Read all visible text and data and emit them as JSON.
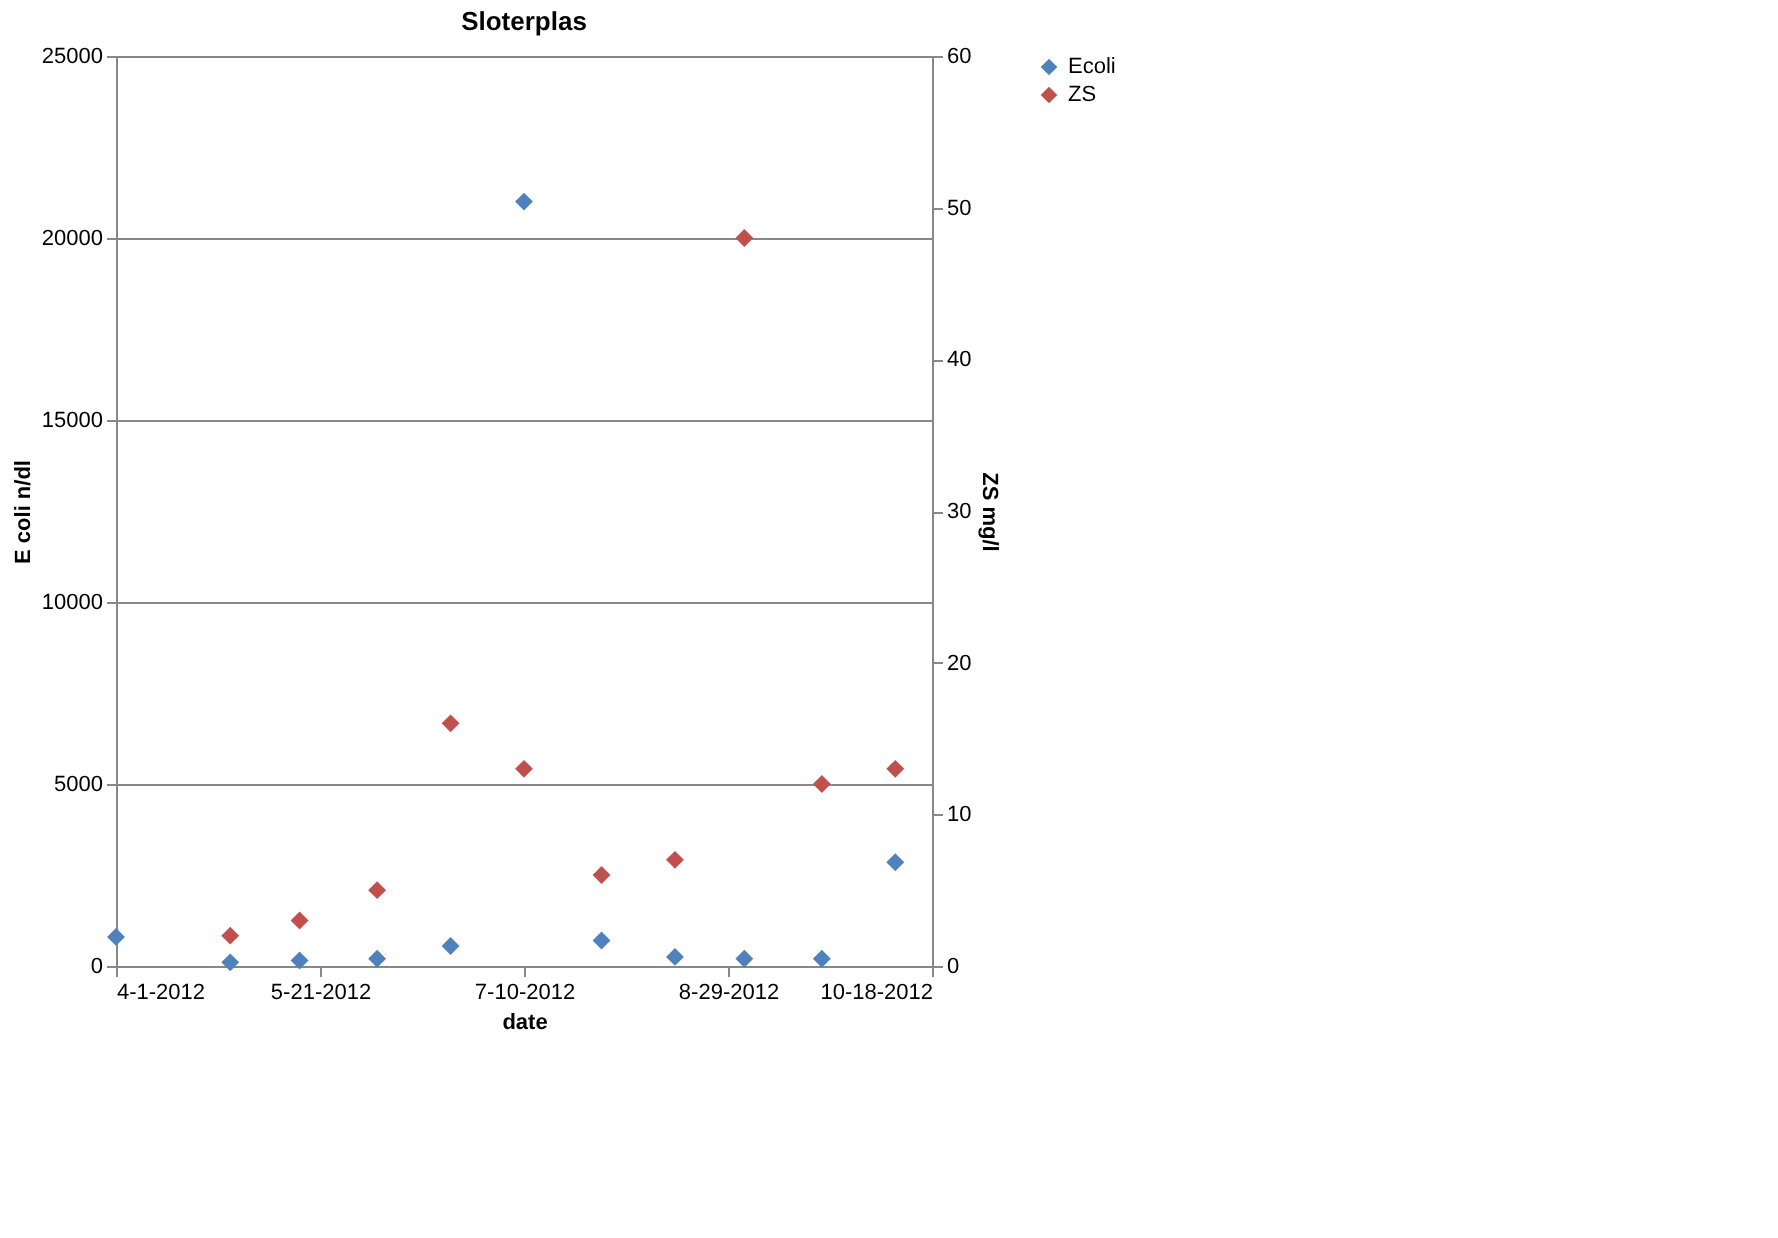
{
  "chart_data": {
    "type": "scatter",
    "title": "Sloterplas",
    "xlabel": "date",
    "ylabel": "E coli n/dl",
    "y2label": "ZS mg/l",
    "series": [
      {
        "name": "Ecoli",
        "color": "#4f81bd",
        "x": [
          "2012-04-01",
          "2012-04-29",
          "2012-05-16",
          "2012-06-04",
          "2012-06-22",
          "2012-07-10",
          "2012-07-29",
          "2012-08-16",
          "2012-09-02",
          "2012-09-21",
          "2012-10-09"
        ],
        "values": [
          800,
          100,
          150,
          200,
          550,
          21000,
          700,
          250,
          200,
          200,
          2850
        ]
      },
      {
        "name": "ZS",
        "color": "#c0504d",
        "axis": "y2",
        "x": [
          "2012-04-29",
          "2012-05-16",
          "2012-06-04",
          "2012-06-22",
          "2012-07-10",
          "2012-07-29",
          "2012-08-16",
          "2012-09-02",
          "2012-09-21",
          "2012-10-09"
        ],
        "values": [
          2,
          3,
          5,
          16,
          13,
          6,
          7,
          48,
          12,
          13
        ]
      }
    ],
    "xlim": [
      "2012-04-01",
      "2012-10-18"
    ],
    "xticks": [
      {
        "value": "2012-04-01",
        "label": "4-1-2012"
      },
      {
        "value": "2012-05-21",
        "label": "5-21-2012"
      },
      {
        "value": "2012-07-10",
        "label": "7-10-2012"
      },
      {
        "value": "2012-08-29",
        "label": "8-29-2012"
      },
      {
        "value": "2012-10-18",
        "label": "10-18-2012"
      }
    ],
    "ylim": [
      0,
      25000
    ],
    "yticks": [
      0,
      5000,
      10000,
      15000,
      20000,
      25000
    ],
    "y2lim": [
      0,
      60
    ],
    "y2ticks": [
      0,
      10,
      20,
      30,
      40,
      50,
      60
    ],
    "grid": "y",
    "legend": "right",
    "marker": "diamond"
  }
}
